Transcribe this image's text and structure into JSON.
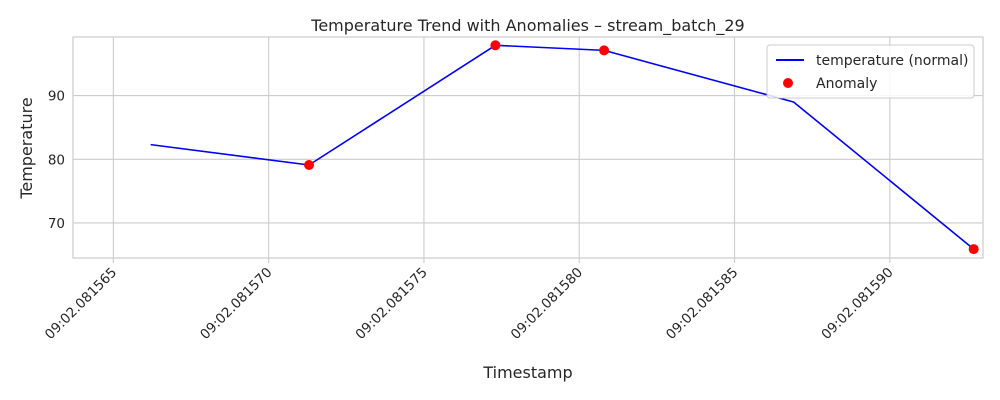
{
  "chart_data": {
    "type": "line",
    "title": "Temperature Trend with Anomalies – stream_batch_29",
    "xlabel": "Timestamp",
    "ylabel": "Temperature",
    "x_ticks": [
      {
        "value": 0,
        "label": "09:02.081565"
      },
      {
        "value": 5,
        "label": "09:02.081570"
      },
      {
        "value": 10,
        "label": "09:02.081575"
      },
      {
        "value": 15,
        "label": "09:02.081580"
      },
      {
        "value": 20,
        "label": "09:02.081585"
      },
      {
        "value": 25,
        "label": "09:02.081590"
      }
    ],
    "y_ticks": [
      70,
      80,
      90
    ],
    "xlim": [
      -1.3,
      28.0
    ],
    "ylim": [
      64.5,
      99.2
    ],
    "grid": true,
    "legend_position": "top-right",
    "series": [
      {
        "name": "temperature (normal)",
        "kind": "line",
        "color": "#0000ff",
        "points": [
          {
            "x": 1.2,
            "y": 82.3
          },
          {
            "x": 6.3,
            "y": 79.1
          },
          {
            "x": 12.3,
            "y": 97.9
          },
          {
            "x": 15.8,
            "y": 97.1
          },
          {
            "x": 21.9,
            "y": 89.0
          },
          {
            "x": 27.7,
            "y": 65.9
          }
        ]
      },
      {
        "name": "Anomaly",
        "kind": "scatter",
        "color": "#ff0000",
        "points": [
          {
            "x": 6.3,
            "y": 79.1
          },
          {
            "x": 12.3,
            "y": 97.9
          },
          {
            "x": 15.8,
            "y": 97.1
          },
          {
            "x": 27.7,
            "y": 65.9
          }
        ]
      }
    ]
  }
}
